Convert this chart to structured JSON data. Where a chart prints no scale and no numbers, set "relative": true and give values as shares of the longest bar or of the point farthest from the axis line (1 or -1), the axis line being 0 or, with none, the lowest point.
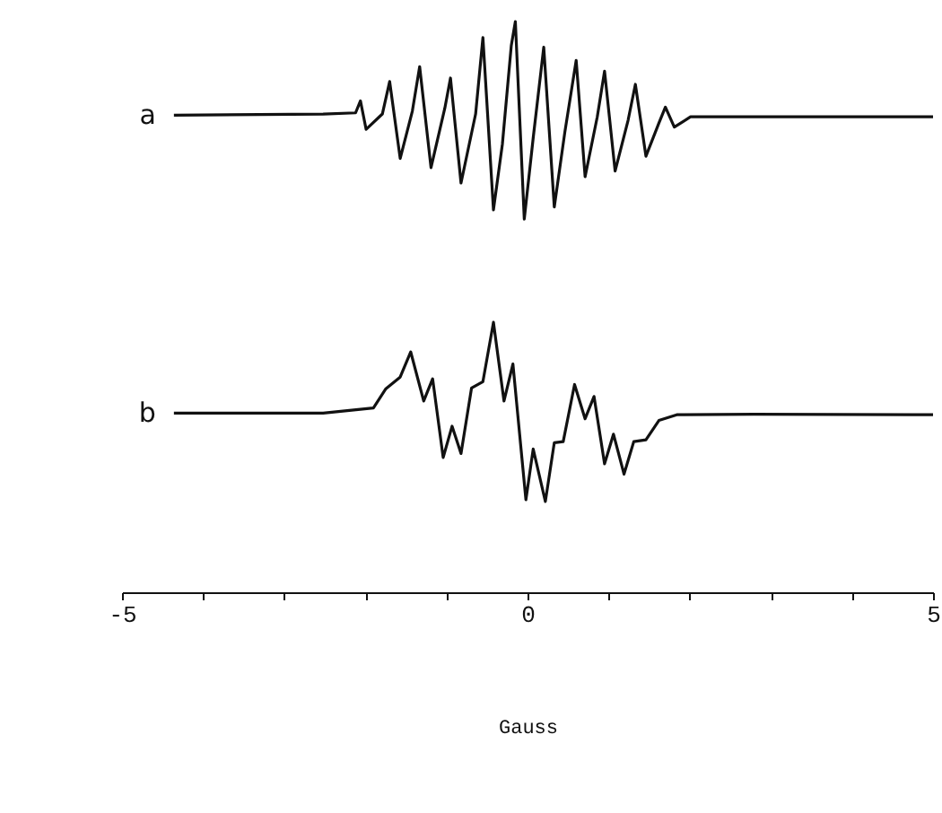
{
  "chart_data": {
    "type": "line",
    "xlabel": "Gauss",
    "relative": true,
    "tick_labels": "x",
    "xlim": [
      -5,
      5
    ],
    "xticks": [
      -5,
      {
        "value": -4,
        "label": null
      },
      {
        "value": -3,
        "label": null
      },
      {
        "value": -2,
        "label": null
      },
      {
        "value": -1,
        "label": null
      },
      0,
      {
        "value": 1,
        "label": null
      },
      {
        "value": 2,
        "label": null
      },
      {
        "value": 3,
        "label": null
      },
      {
        "value": 4,
        "label": null
      },
      5
    ],
    "series": [
      {
        "name": "a",
        "color": "#111111",
        "x": [
          -4.36,
          -2.52,
          -2.12,
          -2.06,
          -1.99,
          -1.79,
          -1.7,
          -1.57,
          -1.42,
          -1.33,
          -1.19,
          -1.02,
          -0.95,
          -0.82,
          -0.64,
          -0.55,
          -0.42,
          -0.31,
          -0.2,
          -0.15,
          -0.04,
          0.07,
          0.2,
          0.33,
          0.46,
          0.6,
          0.71,
          0.86,
          0.95,
          1.08,
          1.24,
          1.33,
          1.46,
          1.62,
          1.7,
          1.81,
          2.01,
          2.79,
          5.0
        ],
        "values": [
          0.836,
          0.838,
          0.84,
          0.861,
          0.811,
          0.838,
          0.895,
          0.76,
          0.843,
          0.921,
          0.744,
          0.848,
          0.901,
          0.717,
          0.838,
          0.972,
          0.67,
          0.785,
          0.958,
          1,
          0.654,
          0.796,
          0.955,
          0.675,
          0.806,
          0.932,
          0.728,
          0.833,
          0.913,
          0.738,
          0.827,
          0.89,
          0.764,
          0.822,
          0.85,
          0.815,
          0.833,
          0.833,
          0.833
        ]
      },
      {
        "name": "b",
        "color": "#111111",
        "x": [
          -4.36,
          -2.52,
          -1.9,
          -1.75,
          -1.57,
          -1.44,
          -1.28,
          -1.17,
          -1.04,
          -0.93,
          -0.82,
          -0.69,
          -0.55,
          -0.42,
          -0.29,
          -0.18,
          -0.02,
          0.07,
          0.22,
          0.33,
          0.44,
          0.58,
          0.71,
          0.82,
          0.95,
          1.06,
          1.19,
          1.31,
          1.46,
          1.62,
          1.84,
          2.79,
          5.0
        ],
        "values": [
          0.314,
          0.314,
          0.323,
          0.356,
          0.377,
          0.421,
          0.335,
          0.374,
          0.236,
          0.291,
          0.243,
          0.358,
          0.369,
          0.473,
          0.335,
          0.4,
          0.162,
          0.251,
          0.159,
          0.262,
          0.264,
          0.364,
          0.304,
          0.343,
          0.225,
          0.277,
          0.207,
          0.264,
          0.267,
          0.301,
          0.311,
          0.312,
          0.311
        ]
      }
    ]
  }
}
